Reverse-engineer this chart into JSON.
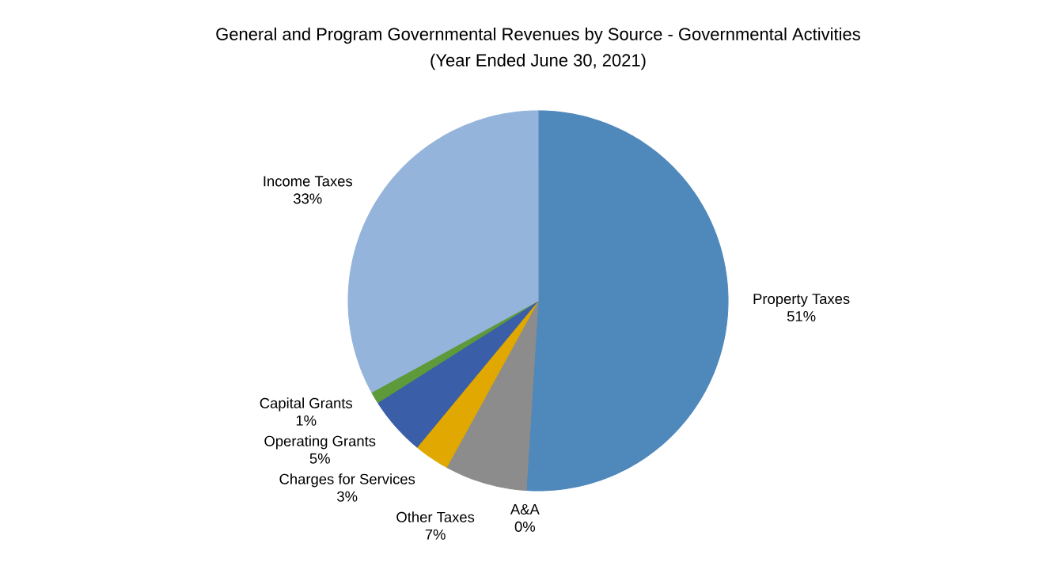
{
  "chart_data": {
    "type": "pie",
    "title": "General and Program Governmental Revenues by Source - Governmental Activities",
    "subtitle": "(Year Ended June 30, 2021)",
    "categories": [
      "Property Taxes",
      "A&A",
      "Other Taxes",
      "Charges for Services",
      "Operating Grants",
      "Capital Grants",
      "Income Taxes"
    ],
    "values": [
      51,
      0,
      7,
      3,
      5,
      1,
      33
    ],
    "value_labels": [
      "51%",
      "0%",
      "7%",
      "3%",
      "5%",
      "1%",
      "33%"
    ],
    "colors": [
      "#4f88bb",
      "#e07b39",
      "#8c8c8c",
      "#e0a800",
      "#3a5fa8",
      "#5e9a3a",
      "#95b4db"
    ]
  }
}
